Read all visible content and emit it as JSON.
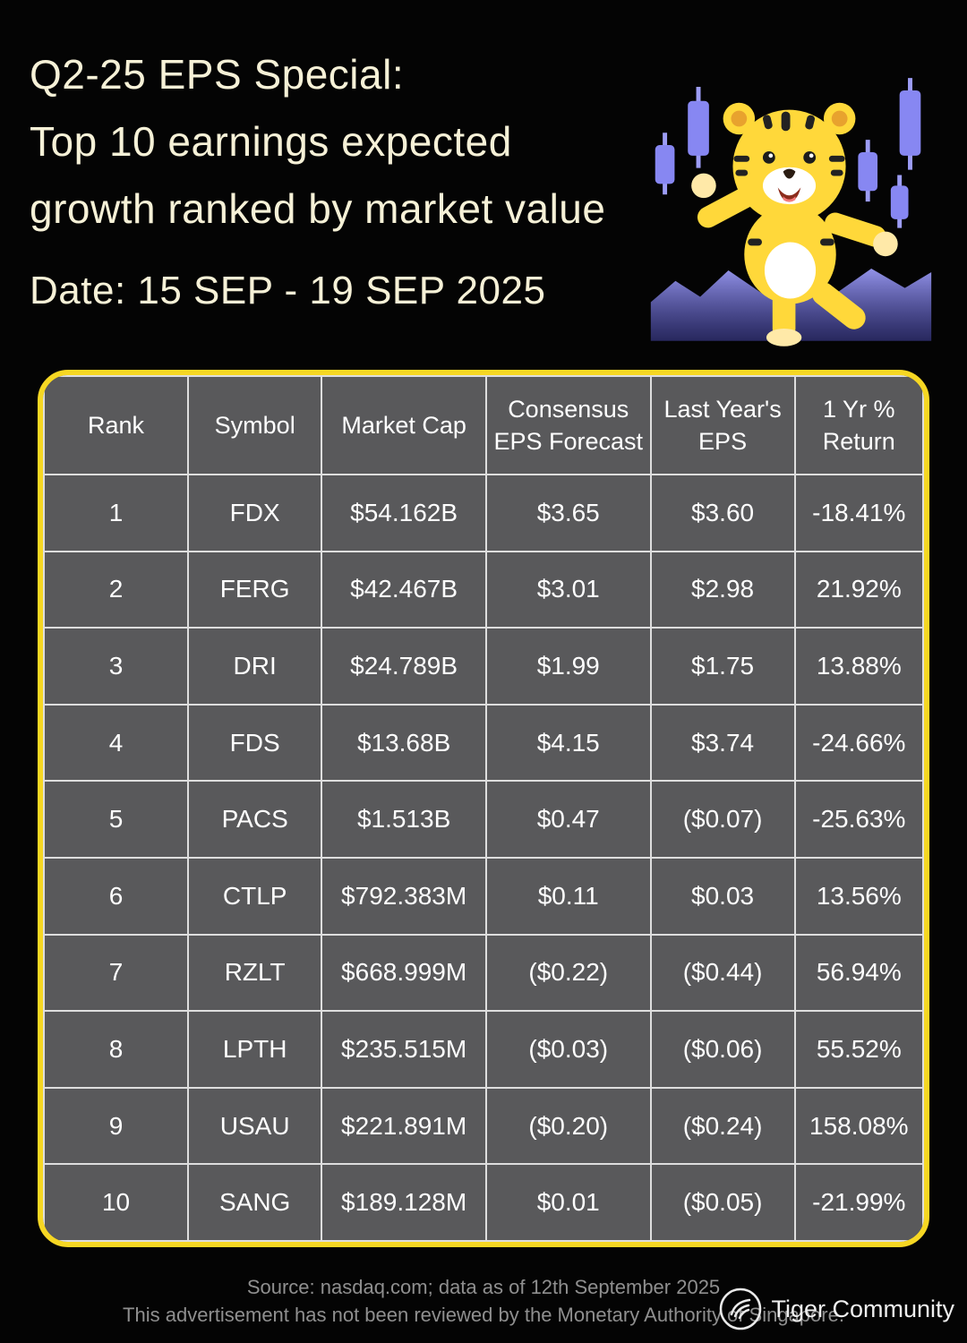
{
  "header": {
    "title_lines": [
      "Q2-25 EPS Special:",
      "Top 10 earnings expected",
      "growth ranked by market value"
    ],
    "date_line": "Date: 15 SEP - 19 SEP 2025"
  },
  "chart_data": {
    "type": "table",
    "title": "Q2-25 EPS Special: Top 10 earnings expected growth ranked by market value",
    "columns": [
      "Rank",
      "Symbol",
      "Market Cap",
      "Consensus EPS Forecast",
      "Last Year's EPS",
      "1 Yr % Return"
    ],
    "rows": [
      {
        "rank": "1",
        "symbol": "FDX",
        "market_cap": "$54.162B",
        "consensus_eps": "$3.65",
        "last_year_eps": "$3.60",
        "return_1yr": "-18.41%",
        "return_sign": "negative"
      },
      {
        "rank": "2",
        "symbol": "FERG",
        "market_cap": "$42.467B",
        "consensus_eps": "$3.01",
        "last_year_eps": "$2.98",
        "return_1yr": "21.92%",
        "return_sign": "positive"
      },
      {
        "rank": "3",
        "symbol": "DRI",
        "market_cap": "$24.789B",
        "consensus_eps": "$1.99",
        "last_year_eps": "$1.75",
        "return_1yr": "13.88%",
        "return_sign": "positive"
      },
      {
        "rank": "4",
        "symbol": "FDS",
        "market_cap": "$13.68B",
        "consensus_eps": "$4.15",
        "last_year_eps": "$3.74",
        "return_1yr": "-24.66%",
        "return_sign": "negative"
      },
      {
        "rank": "5",
        "symbol": "PACS",
        "market_cap": "$1.513B",
        "consensus_eps": "$0.47",
        "last_year_eps": "($0.07)",
        "return_1yr": "-25.63%",
        "return_sign": "negative"
      },
      {
        "rank": "6",
        "symbol": "CTLP",
        "market_cap": "$792.383M",
        "consensus_eps": "$0.11",
        "last_year_eps": "$0.03",
        "return_1yr": "13.56%",
        "return_sign": "positive"
      },
      {
        "rank": "7",
        "symbol": "RZLT",
        "market_cap": "$668.999M",
        "consensus_eps": "($0.22)",
        "last_year_eps": "($0.44)",
        "return_1yr": "56.94%",
        "return_sign": "positive"
      },
      {
        "rank": "8",
        "symbol": "LPTH",
        "market_cap": "$235.515M",
        "consensus_eps": "($0.03)",
        "last_year_eps": "($0.06)",
        "return_1yr": "55.52%",
        "return_sign": "positive"
      },
      {
        "rank": "9",
        "symbol": "USAU",
        "market_cap": "$221.891M",
        "consensus_eps": "($0.20)",
        "last_year_eps": "($0.24)",
        "return_1yr": "158.08%",
        "return_sign": "positive"
      },
      {
        "rank": "10",
        "symbol": "SANG",
        "market_cap": "$189.128M",
        "consensus_eps": "$0.01",
        "last_year_eps": "($0.05)",
        "return_1yr": "-21.99%",
        "return_sign": "negative"
      }
    ],
    "column_header_lines": [
      [
        "Rank"
      ],
      [
        "Symbol"
      ],
      [
        "Market Cap"
      ],
      [
        "Consensus",
        "EPS Forecast"
      ],
      [
        "Last Year's",
        "EPS"
      ],
      [
        "1 Yr %",
        "Return"
      ]
    ]
  },
  "footer": {
    "source": "Source: nasdaq.com; data as of 12th September 2025",
    "disclaimer": "This advertisement has not been reviewed by the Monetary Authority of Singapore.",
    "brand": "Tiger Community"
  },
  "colors": {
    "accent_orange": "#F5911E",
    "positive_green": "#3ED43C",
    "negative_pink": "#F49AA4",
    "border_yellow": "#F6D723",
    "cell_gray": "#59595B",
    "title_cream": "#F6F1D7"
  }
}
